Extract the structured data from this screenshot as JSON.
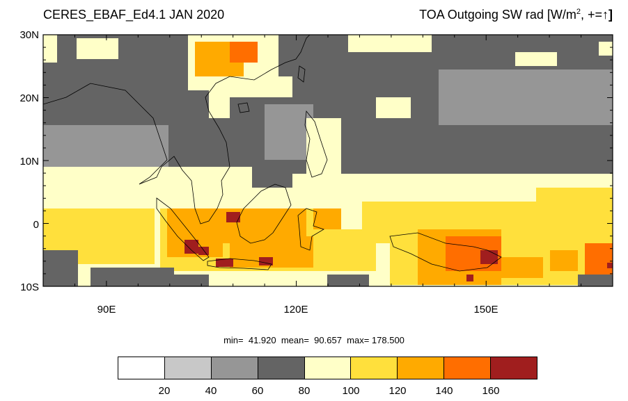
{
  "title_left": "CERES_EBAF_Ed4.1 JAN 2020",
  "title_right": {
    "text": "TOA Outgoing SW rad [W/m",
    "sup": "2",
    "tail": ", +=",
    "arrow": "↑",
    "close": "]"
  },
  "map": {
    "lon_range": [
      80,
      170
    ],
    "lat_range": [
      -10,
      30
    ],
    "lat_ticks": [
      "30N",
      "20N",
      "10N",
      "0",
      "10S"
    ],
    "lon_ticks": [
      "90E",
      "120E",
      "150E"
    ]
  },
  "stats": {
    "text": "min=  41.920  mean=  90.657  max= 178.500"
  },
  "colorbar": {
    "colors": [
      "#ffffff",
      "#c8c8c8",
      "#969696",
      "#646464",
      "#ffffc8",
      "#ffe03c",
      "#ffaa00",
      "#ff6e00",
      "#a01e1e"
    ],
    "labels": [
      "20",
      "40",
      "60",
      "80",
      "100",
      "120",
      "140",
      "160"
    ]
  }
}
